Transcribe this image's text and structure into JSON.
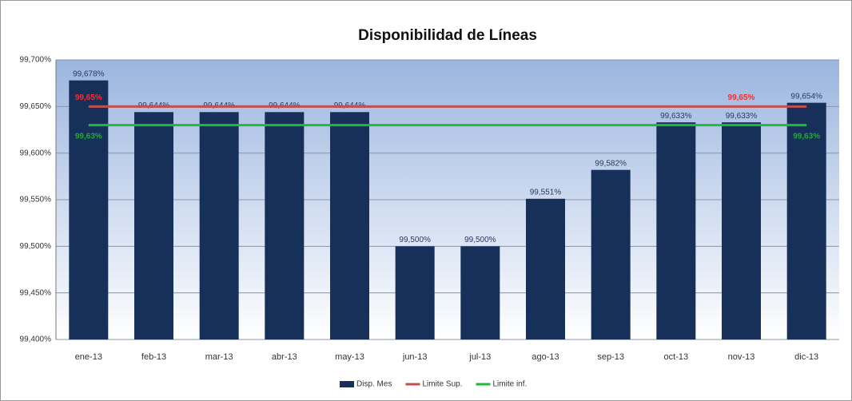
{
  "chart_data": {
    "type": "bar",
    "title": "Disponibilidad de Líneas",
    "categories": [
      "ene-13",
      "feb-13",
      "mar-13",
      "abr-13",
      "may-13",
      "jun-13",
      "jul-13",
      "ago-13",
      "sep-13",
      "oct-13",
      "nov-13",
      "dic-13"
    ],
    "series": [
      {
        "name": "Disp. Mes",
        "type": "bar",
        "color": "#17305a",
        "values": [
          99.678,
          99.644,
          99.644,
          99.644,
          99.644,
          99.5,
          99.5,
          99.551,
          99.582,
          99.633,
          99.633,
          99.654
        ],
        "value_labels": [
          "99,678%",
          "99,644%",
          "99,644%",
          "99,644%",
          "99,644%",
          "99,500%",
          "99,500%",
          "99,551%",
          "99,582%",
          "99,633%",
          "99,633%",
          "99,654%"
        ]
      },
      {
        "name": "Limite Sup.",
        "type": "line",
        "color": "#c0504d",
        "label_color": "#ff2a2a",
        "values": [
          99.65,
          99.65,
          99.65,
          99.65,
          99.65,
          99.65,
          99.65,
          99.65,
          99.65,
          99.65,
          99.65,
          99.65
        ],
        "value_labels": [
          "99,65%",
          null,
          null,
          null,
          null,
          null,
          null,
          null,
          null,
          null,
          "99,65%",
          null
        ]
      },
      {
        "name": "Limite inf.",
        "type": "line",
        "color": "#22b83a",
        "label_color": "#22a83a",
        "values": [
          99.63,
          99.63,
          99.63,
          99.63,
          99.63,
          99.63,
          99.63,
          99.63,
          99.63,
          99.63,
          99.63,
          99.63
        ],
        "value_labels": [
          "99,63%",
          null,
          null,
          null,
          null,
          null,
          null,
          null,
          null,
          null,
          null,
          "99,63%"
        ]
      }
    ],
    "ylim": [
      99.4,
      99.7
    ],
    "yticks": [
      {
        "value": 99.4,
        "label": "99,400%"
      },
      {
        "value": 99.45,
        "label": "99,450%"
      },
      {
        "value": 99.5,
        "label": "99,500%"
      },
      {
        "value": 99.55,
        "label": "99,550%"
      },
      {
        "value": 99.6,
        "label": "99,600%"
      },
      {
        "value": 99.65,
        "label": "99,650%"
      },
      {
        "value": 99.7,
        "label": "99,700%"
      }
    ],
    "grid": true,
    "legend": "bottom"
  }
}
